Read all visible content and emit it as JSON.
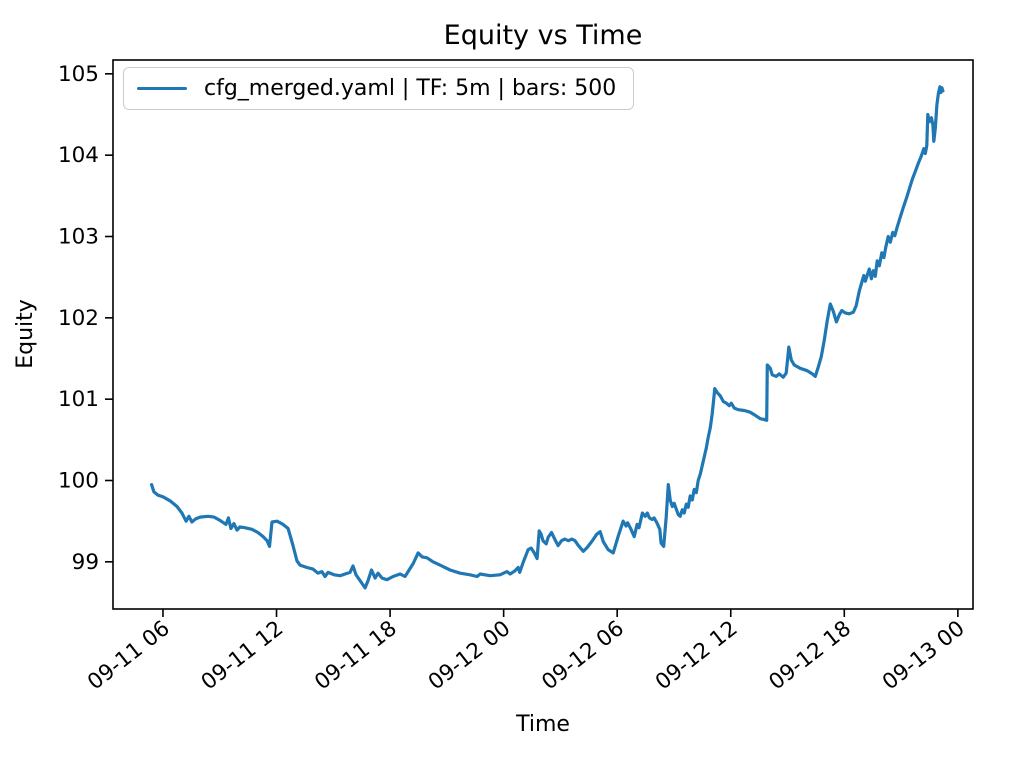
{
  "figure": {
    "background": "#ffffff"
  },
  "chart_data": {
    "type": "line",
    "title": "Equity vs Time",
    "xlabel": "Time",
    "ylabel": "Equity",
    "legend_label": "cfg_merged.yaml | TF: 5m | bars: 500",
    "legend_position": "upper-left",
    "grid": false,
    "line_color": "#1f77b4",
    "axis_color": "#000000",
    "legend_border_color": "#cbcbcb",
    "x_axis": {
      "lim_hours": [
        3.36,
        48.8
      ],
      "ticks_hours": [
        6,
        12,
        18,
        24,
        30,
        36,
        42,
        48
      ],
      "tick_labels": [
        "09-11 06",
        "09-11 12",
        "09-11 18",
        "09-12 00",
        "09-12 06",
        "09-12 12",
        "09-12 18",
        "09-13 00"
      ],
      "tick_rotation_deg": 38
    },
    "y_axis": {
      "lim": [
        98.42,
        105.17
      ],
      "ticks": [
        99,
        100,
        101,
        102,
        103,
        104,
        105
      ],
      "tick_labels": [
        "99",
        "100",
        "101",
        "102",
        "103",
        "104",
        "105"
      ]
    },
    "series": [
      {
        "name": "cfg_merged.yaml | TF: 5m | bars: 500",
        "color": "#1f77b4",
        "points": [
          [
            5.4,
            99.95
          ],
          [
            5.52,
            99.86
          ],
          [
            5.73,
            99.82
          ],
          [
            6.0,
            99.8
          ],
          [
            6.37,
            99.75
          ],
          [
            6.74,
            99.68
          ],
          [
            7.0,
            99.6
          ],
          [
            7.22,
            99.5
          ],
          [
            7.37,
            99.56
          ],
          [
            7.53,
            99.49
          ],
          [
            7.74,
            99.53
          ],
          [
            7.96,
            99.55
          ],
          [
            8.38,
            99.56
          ],
          [
            8.7,
            99.55
          ],
          [
            9.01,
            99.51
          ],
          [
            9.33,
            99.46
          ],
          [
            9.46,
            99.54
          ],
          [
            9.59,
            99.41
          ],
          [
            9.75,
            99.47
          ],
          [
            9.91,
            99.39
          ],
          [
            10.07,
            99.43
          ],
          [
            10.33,
            99.42
          ],
          [
            10.7,
            99.4
          ],
          [
            11.02,
            99.36
          ],
          [
            11.29,
            99.31
          ],
          [
            11.5,
            99.26
          ],
          [
            11.63,
            99.19
          ],
          [
            11.76,
            99.49
          ],
          [
            12.03,
            99.5
          ],
          [
            12.34,
            99.46
          ],
          [
            12.61,
            99.41
          ],
          [
            12.87,
            99.2
          ],
          [
            13.08,
            99.01
          ],
          [
            13.24,
            98.96
          ],
          [
            13.61,
            98.93
          ],
          [
            13.93,
            98.91
          ],
          [
            14.19,
            98.86
          ],
          [
            14.4,
            98.88
          ],
          [
            14.56,
            98.82
          ],
          [
            14.72,
            98.87
          ],
          [
            15.04,
            98.84
          ],
          [
            15.36,
            98.83
          ],
          [
            15.62,
            98.85
          ],
          [
            15.88,
            98.87
          ],
          [
            16.04,
            98.95
          ],
          [
            16.2,
            98.84
          ],
          [
            16.41,
            98.77
          ],
          [
            16.68,
            98.68
          ],
          [
            16.84,
            98.77
          ],
          [
            17.02,
            98.9
          ],
          [
            17.21,
            98.8
          ],
          [
            17.36,
            98.86
          ],
          [
            17.58,
            98.8
          ],
          [
            17.84,
            98.78
          ],
          [
            18.16,
            98.82
          ],
          [
            18.53,
            98.85
          ],
          [
            18.79,
            98.82
          ],
          [
            18.95,
            98.88
          ],
          [
            19.22,
            98.98
          ],
          [
            19.48,
            99.11
          ],
          [
            19.69,
            99.06
          ],
          [
            19.95,
            99.05
          ],
          [
            20.27,
            99.0
          ],
          [
            20.64,
            98.96
          ],
          [
            21.17,
            98.9
          ],
          [
            21.7,
            98.86
          ],
          [
            22.23,
            98.84
          ],
          [
            22.6,
            98.82
          ],
          [
            22.76,
            98.85
          ],
          [
            23.28,
            98.83
          ],
          [
            23.81,
            98.84
          ],
          [
            24.18,
            98.88
          ],
          [
            24.34,
            98.85
          ],
          [
            24.6,
            98.89
          ],
          [
            24.77,
            98.93
          ],
          [
            24.85,
            98.87
          ],
          [
            25.03,
            98.99
          ],
          [
            25.3,
            99.15
          ],
          [
            25.45,
            99.17
          ],
          [
            25.62,
            99.11
          ],
          [
            25.77,
            99.04
          ],
          [
            25.88,
            99.38
          ],
          [
            25.98,
            99.34
          ],
          [
            26.08,
            99.26
          ],
          [
            26.25,
            99.22
          ],
          [
            26.35,
            99.3
          ],
          [
            26.53,
            99.36
          ],
          [
            26.7,
            99.28
          ],
          [
            26.88,
            99.2
          ],
          [
            27.06,
            99.26
          ],
          [
            27.23,
            99.28
          ],
          [
            27.42,
            99.26
          ],
          [
            27.6,
            99.28
          ],
          [
            27.77,
            99.26
          ],
          [
            27.95,
            99.2
          ],
          [
            28.21,
            99.13
          ],
          [
            28.39,
            99.17
          ],
          [
            28.66,
            99.25
          ],
          [
            28.92,
            99.34
          ],
          [
            29.1,
            99.37
          ],
          [
            29.26,
            99.25
          ],
          [
            29.52,
            99.15
          ],
          [
            29.79,
            99.11
          ],
          [
            30.05,
            99.31
          ],
          [
            30.31,
            99.5
          ],
          [
            30.47,
            99.44
          ],
          [
            30.55,
            99.48
          ],
          [
            30.73,
            99.4
          ],
          [
            30.9,
            99.31
          ],
          [
            31.05,
            99.46
          ],
          [
            31.15,
            99.42
          ],
          [
            31.33,
            99.6
          ],
          [
            31.48,
            99.56
          ],
          [
            31.59,
            99.6
          ],
          [
            31.7,
            99.54
          ],
          [
            31.85,
            99.52
          ],
          [
            31.95,
            99.54
          ],
          [
            32.1,
            99.48
          ],
          [
            32.25,
            99.4
          ],
          [
            32.32,
            99.23
          ],
          [
            32.46,
            99.19
          ],
          [
            32.59,
            99.55
          ],
          [
            32.7,
            99.95
          ],
          [
            32.8,
            99.76
          ],
          [
            32.91,
            99.68
          ],
          [
            33.01,
            99.72
          ],
          [
            33.12,
            99.65
          ],
          [
            33.23,
            99.58
          ],
          [
            33.33,
            99.56
          ],
          [
            33.44,
            99.64
          ],
          [
            33.54,
            99.6
          ],
          [
            33.65,
            99.71
          ],
          [
            33.75,
            99.67
          ],
          [
            33.86,
            99.81
          ],
          [
            33.97,
            99.76
          ],
          [
            34.07,
            99.89
          ],
          [
            34.18,
            99.85
          ],
          [
            34.28,
            100.0
          ],
          [
            34.39,
            100.08
          ],
          [
            34.55,
            100.24
          ],
          [
            34.71,
            100.4
          ],
          [
            34.81,
            100.53
          ],
          [
            34.92,
            100.65
          ],
          [
            35.02,
            100.82
          ],
          [
            35.16,
            101.13
          ],
          [
            35.29,
            101.08
          ],
          [
            35.45,
            101.04
          ],
          [
            35.61,
            100.97
          ],
          [
            35.77,
            100.95
          ],
          [
            35.92,
            100.92
          ],
          [
            36.03,
            100.95
          ],
          [
            36.19,
            100.89
          ],
          [
            36.4,
            100.87
          ],
          [
            36.72,
            100.86
          ],
          [
            37.03,
            100.84
          ],
          [
            37.3,
            100.8
          ],
          [
            37.56,
            100.76
          ],
          [
            37.77,
            100.75
          ],
          [
            37.9,
            100.74
          ],
          [
            37.93,
            101.42
          ],
          [
            38.09,
            101.38
          ],
          [
            38.19,
            101.3
          ],
          [
            38.4,
            101.28
          ],
          [
            38.56,
            101.31
          ],
          [
            38.77,
            101.27
          ],
          [
            38.93,
            101.32
          ],
          [
            39.07,
            101.64
          ],
          [
            39.2,
            101.48
          ],
          [
            39.36,
            101.42
          ],
          [
            39.67,
            101.38
          ],
          [
            40.04,
            101.35
          ],
          [
            40.31,
            101.31
          ],
          [
            40.47,
            101.28
          ],
          [
            40.63,
            101.4
          ],
          [
            40.78,
            101.52
          ],
          [
            40.94,
            101.72
          ],
          [
            41.1,
            101.97
          ],
          [
            41.26,
            102.17
          ],
          [
            41.42,
            102.08
          ],
          [
            41.58,
            101.95
          ],
          [
            41.74,
            102.04
          ],
          [
            41.87,
            102.09
          ],
          [
            42.05,
            102.06
          ],
          [
            42.26,
            102.05
          ],
          [
            42.48,
            102.07
          ],
          [
            42.63,
            102.15
          ],
          [
            42.79,
            102.33
          ],
          [
            42.93,
            102.44
          ],
          [
            43.03,
            102.52
          ],
          [
            43.11,
            102.45
          ],
          [
            43.22,
            102.53
          ],
          [
            43.32,
            102.6
          ],
          [
            43.43,
            102.48
          ],
          [
            43.53,
            102.58
          ],
          [
            43.64,
            102.51
          ],
          [
            43.74,
            102.7
          ],
          [
            43.85,
            102.64
          ],
          [
            43.98,
            102.8
          ],
          [
            44.09,
            102.74
          ],
          [
            44.19,
            102.87
          ],
          [
            44.32,
            103.0
          ],
          [
            44.43,
            102.93
          ],
          [
            44.56,
            103.05
          ],
          [
            44.67,
            103.01
          ],
          [
            44.8,
            103.12
          ],
          [
            44.96,
            103.24
          ],
          [
            45.12,
            103.36
          ],
          [
            45.28,
            103.47
          ],
          [
            45.43,
            103.58
          ],
          [
            45.59,
            103.7
          ],
          [
            45.75,
            103.8
          ],
          [
            45.91,
            103.9
          ],
          [
            46.07,
            103.99
          ],
          [
            46.2,
            104.08
          ],
          [
            46.28,
            104.02
          ],
          [
            46.36,
            104.12
          ],
          [
            46.41,
            104.5
          ],
          [
            46.49,
            104.41
          ],
          [
            46.6,
            104.46
          ],
          [
            46.68,
            104.37
          ],
          [
            46.73,
            104.17
          ],
          [
            46.81,
            104.33
          ],
          [
            46.89,
            104.62
          ],
          [
            46.97,
            104.76
          ],
          [
            47.05,
            104.84
          ],
          [
            47.1,
            104.77
          ],
          [
            47.15,
            104.83
          ],
          [
            47.21,
            104.79
          ]
        ]
      }
    ]
  }
}
